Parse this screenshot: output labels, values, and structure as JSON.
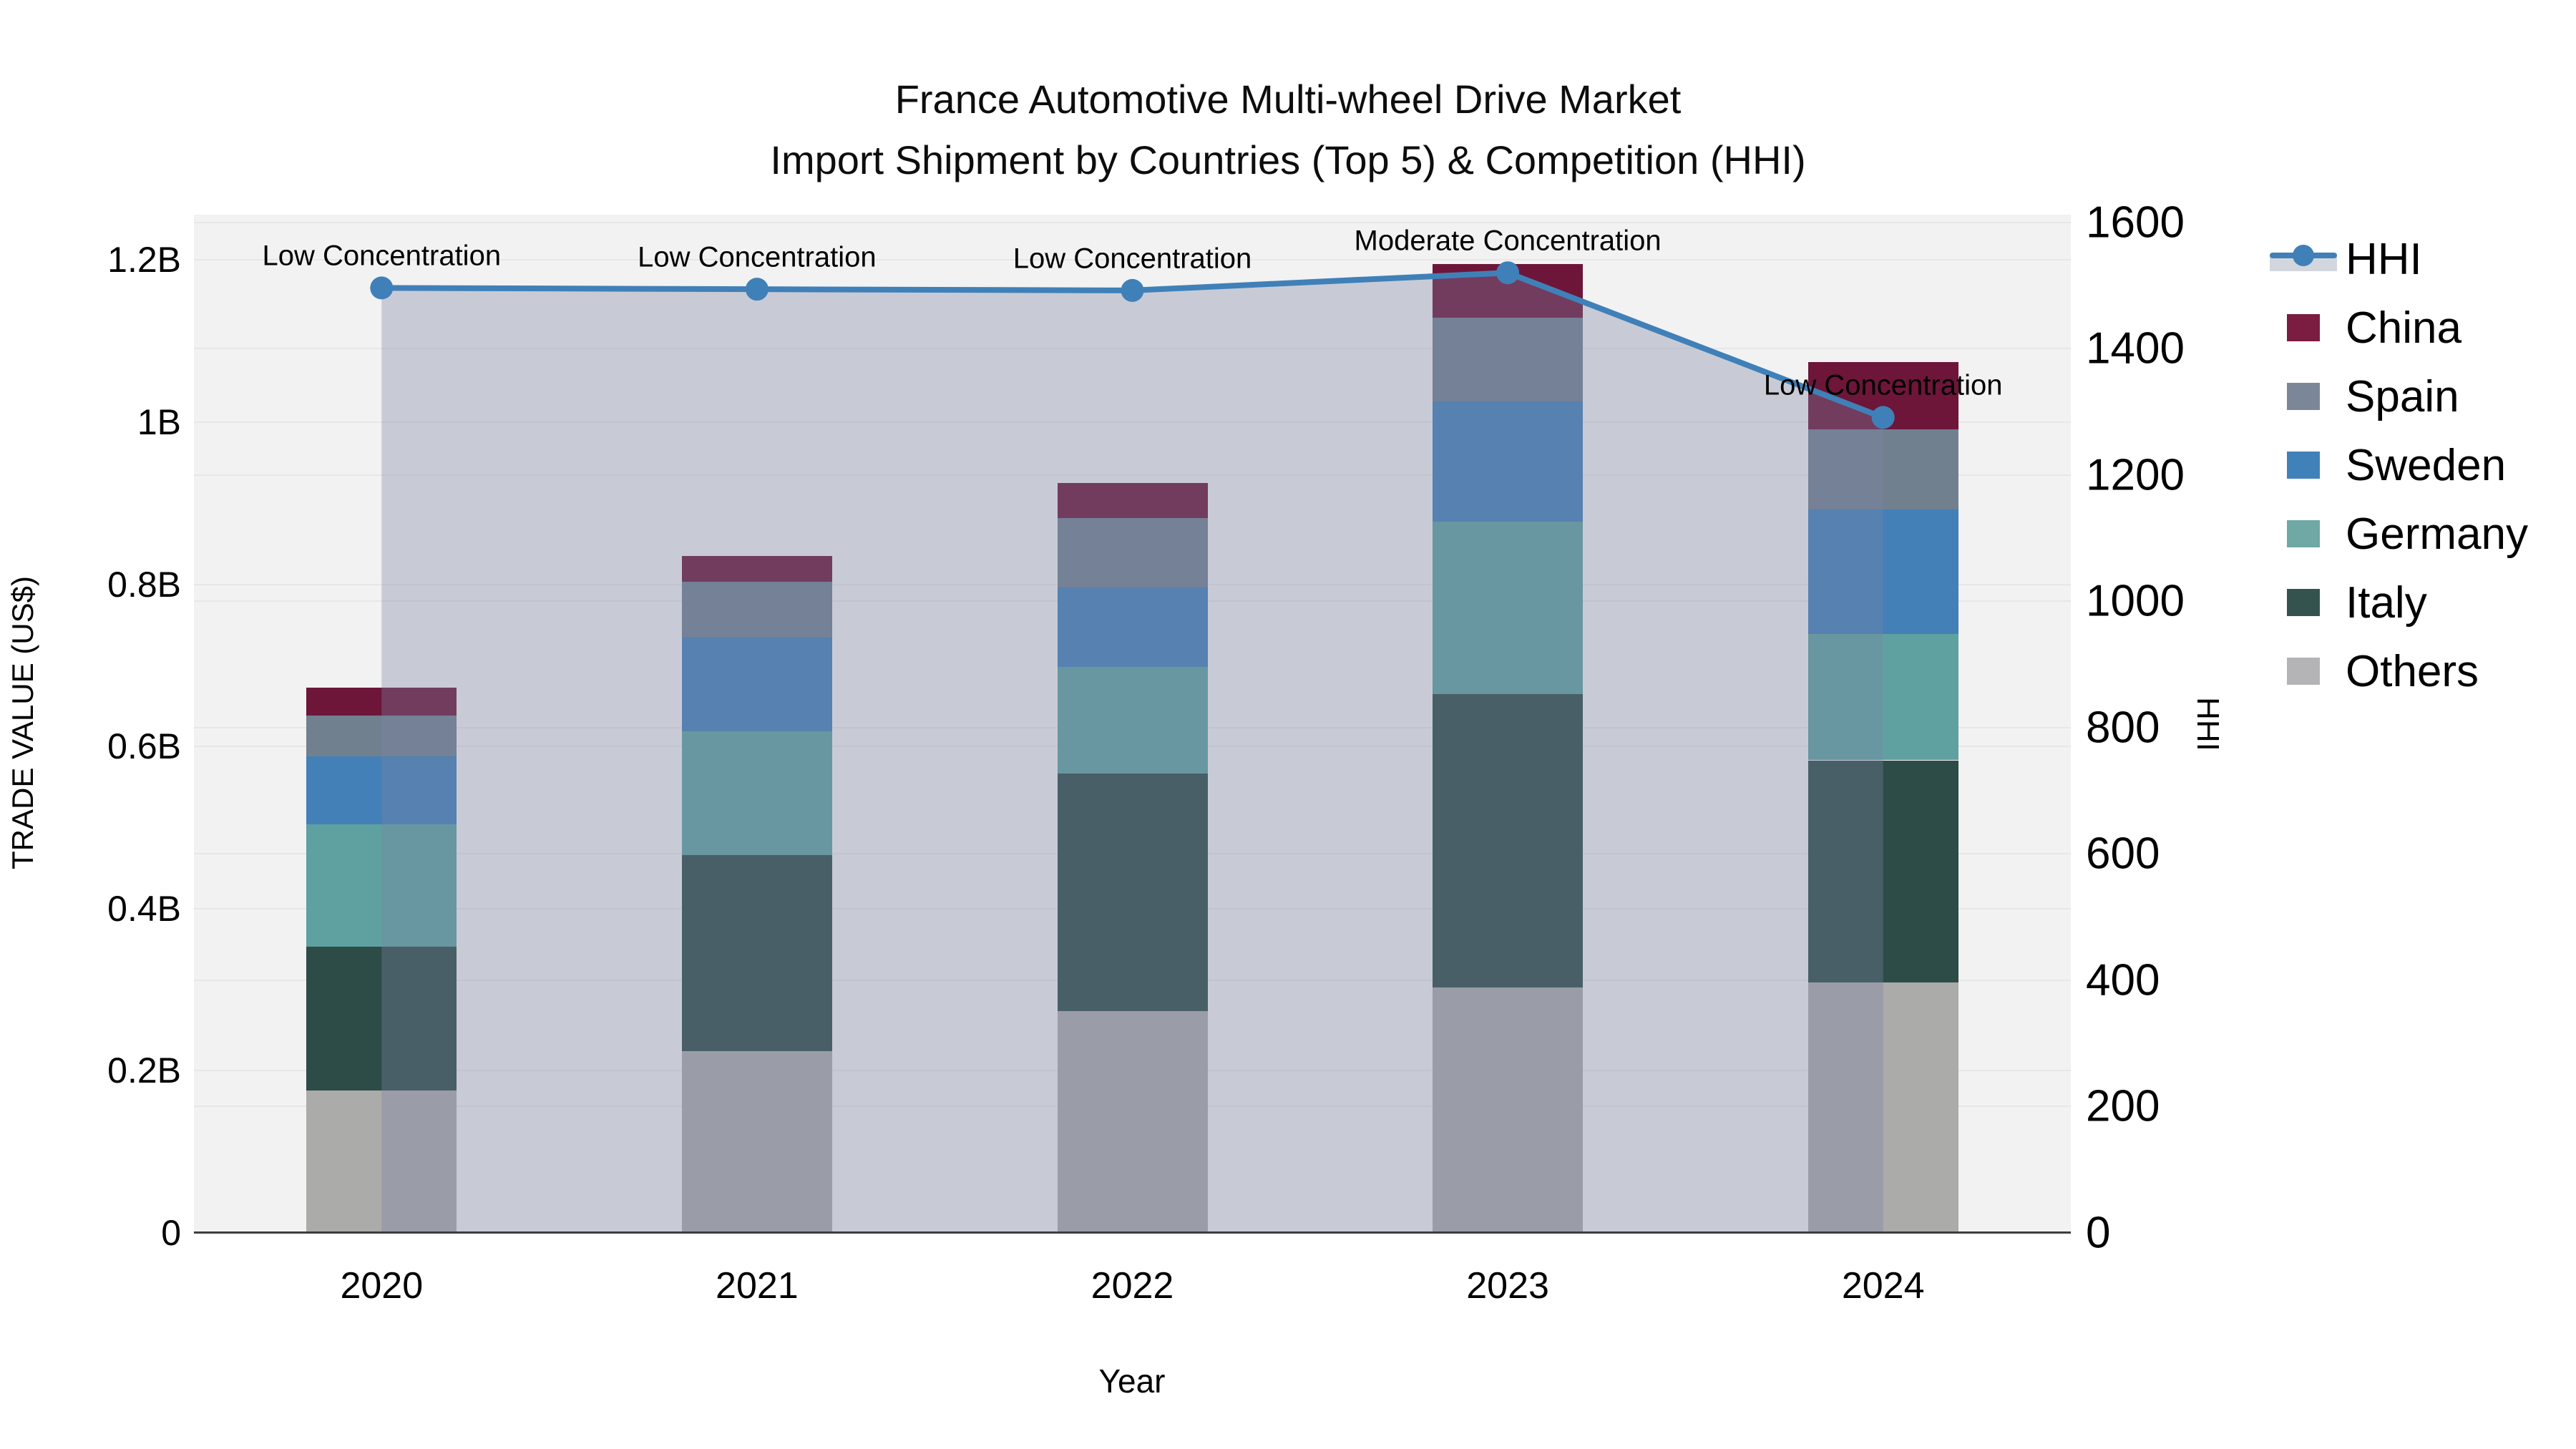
{
  "title": {
    "line1": "France Automotive Multi-wheel Drive Market",
    "line2": "Import Shipment by Countries (Top 5) & Competition (HHI)"
  },
  "axes": {
    "left": {
      "title": "TRADE VALUE (US$)",
      "tick_labels": [
        "0",
        "0.2B",
        "0.4B",
        "0.6B",
        "0.8B",
        "1B",
        "1.2B"
      ],
      "tick_values": [
        0,
        0.2,
        0.4,
        0.6,
        0.8,
        1.0,
        1.2
      ],
      "range": [
        0,
        1.256
      ]
    },
    "right": {
      "title": "HHI",
      "tick_labels": [
        "0",
        "200",
        "400",
        "600",
        "800",
        "1000",
        "1200",
        "1400",
        "1600"
      ],
      "tick_values": [
        0,
        200,
        400,
        600,
        800,
        1000,
        1200,
        1400,
        1600
      ],
      "range": [
        0,
        1612
      ]
    },
    "x": {
      "title": "Year",
      "categories": [
        "2020",
        "2021",
        "2022",
        "2023",
        "2024"
      ]
    }
  },
  "legend": {
    "items": [
      {
        "label": "HHI",
        "type": "line",
        "color": "#4080b8"
      },
      {
        "label": "China",
        "type": "box",
        "color": "#7a1d41"
      },
      {
        "label": "Spain",
        "type": "box",
        "color": "#7b8798"
      },
      {
        "label": "Sweden",
        "type": "box",
        "color": "#4181b9"
      },
      {
        "label": "Germany",
        "type": "box",
        "color": "#6fa8a4"
      },
      {
        "label": "Italy",
        "type": "box",
        "color": "#35534e"
      },
      {
        "label": "Others",
        "type": "box",
        "color": "#b4b4b6"
      }
    ]
  },
  "chart_data": {
    "type": "bar",
    "subtype": "stacked-bars-with-line",
    "title": "France Automotive Multi-wheel Drive Market — Import Shipment by Countries (Top 5) & Competition (HHI)",
    "xlabel": "Year",
    "ylabel_left": "TRADE VALUE (US$)",
    "ylabel_right": "HHI",
    "categories": [
      "2020",
      "2021",
      "2022",
      "2023",
      "2024"
    ],
    "unit": "billion US$",
    "stack_order_bottom_to_top": [
      "Others",
      "Italy",
      "Germany",
      "Sweden",
      "Spain",
      "China"
    ],
    "series": [
      {
        "name": "China",
        "values": [
          0.035,
          0.032,
          0.043,
          0.066,
          0.083
        ],
        "color": "#6d1639"
      },
      {
        "name": "Spain",
        "values": [
          0.05,
          0.069,
          0.086,
          0.103,
          0.099
        ],
        "color": "#71808f"
      },
      {
        "name": "Sweden",
        "values": [
          0.084,
          0.115,
          0.098,
          0.149,
          0.153
        ],
        "color": "#4380b7"
      },
      {
        "name": "Germany",
        "values": [
          0.151,
          0.153,
          0.131,
          0.212,
          0.156
        ],
        "color": "#5fa1a0"
      },
      {
        "name": "Italy",
        "values": [
          0.177,
          0.242,
          0.293,
          0.362,
          0.274
        ],
        "color": "#2d4c48"
      },
      {
        "name": "Others",
        "values": [
          0.176,
          0.224,
          0.274,
          0.303,
          0.309
        ],
        "color": "#ababa9"
      }
    ],
    "bar_totals": [
      0.673,
      0.835,
      0.925,
      1.195,
      1.074
    ],
    "line_series": {
      "name": "HHI",
      "values": [
        1496,
        1494,
        1492,
        1520,
        1291
      ],
      "color": "#4080b8",
      "area_fill": "rgba(122,133,162,0.35)"
    },
    "annotations": [
      {
        "x": "2020",
        "text": "Low Concentration"
      },
      {
        "x": "2021",
        "text": "Low Concentration"
      },
      {
        "x": "2022",
        "text": "Low Concentration"
      },
      {
        "x": "2023",
        "text": "Moderate Concentration"
      },
      {
        "x": "2024",
        "text": "Low Concentration"
      }
    ],
    "ylim_left": [
      0,
      1.256
    ],
    "ylim_right": [
      0,
      1612
    ],
    "grid": true,
    "legend_position": "right"
  },
  "colors": {
    "plot_bg": "#f2f2f2",
    "grid": "#e7e7e7",
    "axis_line": "#3d3d3d",
    "text": "#000000"
  }
}
